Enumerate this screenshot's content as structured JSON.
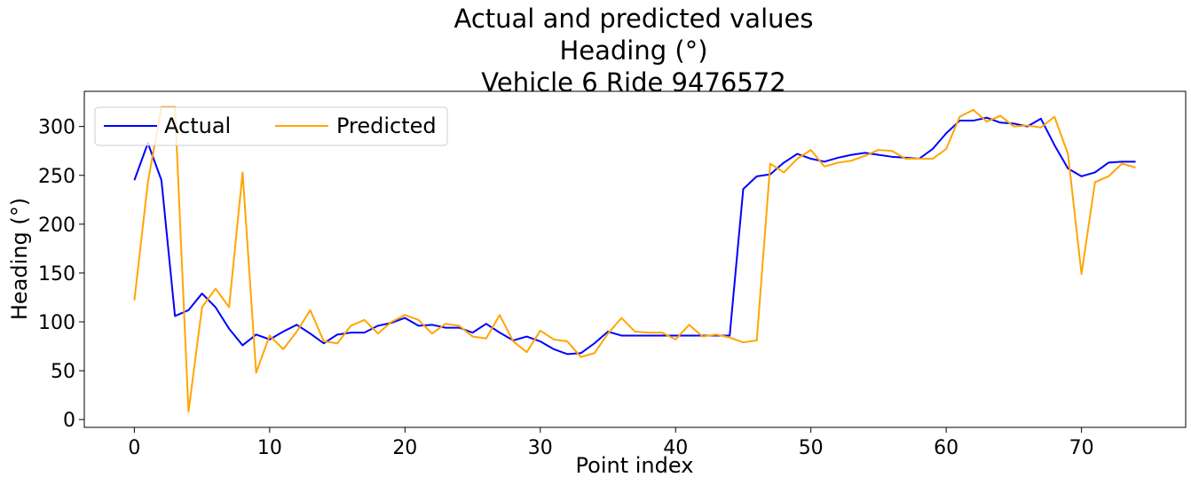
{
  "chart_data": {
    "type": "line",
    "title": [
      "Actual and predicted values",
      "Heading (°)",
      "Vehicle 6 Ride 9476572"
    ],
    "xlabel": "Point index",
    "ylabel": "Heading (°)",
    "xlim": [
      -3.7,
      77.7
    ],
    "ylim": [
      -8,
      336
    ],
    "xticks": [
      0,
      10,
      20,
      30,
      40,
      50,
      60,
      70
    ],
    "yticks": [
      0,
      50,
      100,
      150,
      200,
      250,
      300
    ],
    "grid": false,
    "legend": {
      "placement": "top-left",
      "columns": 2
    },
    "x": [
      0,
      1,
      2,
      3,
      4,
      5,
      6,
      7,
      8,
      9,
      10,
      11,
      12,
      13,
      14,
      15,
      16,
      17,
      18,
      19,
      20,
      21,
      22,
      23,
      24,
      25,
      26,
      27,
      28,
      29,
      30,
      31,
      32,
      33,
      34,
      35,
      36,
      37,
      38,
      39,
      40,
      41,
      42,
      43,
      44,
      45,
      46,
      47,
      48,
      49,
      50,
      51,
      52,
      53,
      54,
      55,
      56,
      57,
      58,
      59,
      60,
      61,
      62,
      63,
      64,
      65,
      66,
      67,
      68,
      69,
      70,
      71,
      72,
      73,
      74
    ],
    "series": [
      {
        "name": "Actual",
        "color": "#0000ff",
        "values": [
          245,
          283,
          245,
          106,
          112,
          129,
          115,
          93,
          76,
          87,
          82,
          90,
          97,
          88,
          78,
          87,
          89,
          89,
          96,
          99,
          104,
          96,
          97,
          94,
          94,
          89,
          98,
          89,
          81,
          85,
          80,
          72,
          67,
          68,
          78,
          90,
          86,
          86,
          86,
          86,
          86,
          86,
          86,
          86,
          86,
          236,
          249,
          251,
          263,
          272,
          267,
          264,
          268,
          271,
          273,
          271,
          269,
          268,
          267,
          277,
          293,
          306,
          306,
          309,
          304,
          303,
          300,
          308,
          281,
          257,
          249,
          253,
          263,
          264,
          264
        ]
      },
      {
        "name": "Predicted",
        "color": "#ffa500",
        "values": [
          122,
          243,
          320,
          320,
          8,
          115,
          134,
          115,
          253,
          48,
          86,
          72,
          90,
          112,
          80,
          78,
          96,
          102,
          88,
          100,
          107,
          102,
          88,
          98,
          96,
          85,
          83,
          107,
          80,
          69,
          91,
          82,
          80,
          64,
          68,
          88,
          104,
          90,
          89,
          89,
          82,
          97,
          85,
          87,
          84,
          79,
          81,
          262,
          253,
          267,
          276,
          259,
          263,
          265,
          270,
          276,
          275,
          267,
          267,
          267,
          277,
          310,
          317,
          305,
          311,
          300,
          301,
          299,
          310,
          272,
          149,
          243,
          249,
          262,
          258
        ]
      }
    ]
  }
}
